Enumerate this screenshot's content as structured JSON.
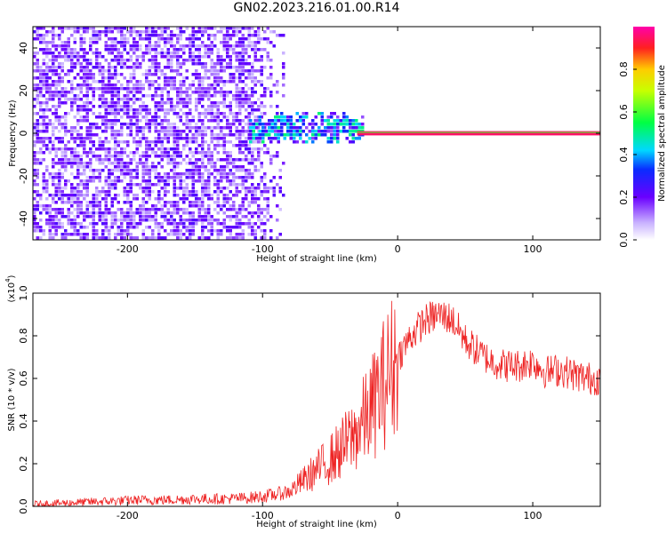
{
  "title": "GN02.2023.216.01.00.R14",
  "colors": {
    "spectrogram_low": "#5500ee",
    "snr_line": "#ee2222",
    "axis": "#000000",
    "background": "#ffffff"
  },
  "chart_data": [
    {
      "type": "heatmap",
      "xlabel": "Height of straight line (km)",
      "ylabel": "Frequency (Hz)",
      "xlim": [
        -270,
        150
      ],
      "ylim": [
        -50,
        50
      ],
      "xticks": [
        -200,
        -100,
        0,
        100
      ],
      "xtick_labels": [
        "-200",
        "-100",
        "0",
        "100"
      ],
      "yticks": [
        -40,
        -20,
        0,
        20,
        40
      ],
      "ytick_labels": [
        "-40",
        "-20",
        "0",
        "20",
        "40"
      ],
      "colorbar": {
        "label": "Normalized spectral amplitude",
        "range": [
          0.0,
          1.0
        ],
        "ticks": [
          0.0,
          0.2,
          0.4,
          0.6,
          0.8
        ],
        "tick_labels": [
          "0.0",
          "0.2",
          "0.4",
          "0.6",
          "0.8"
        ],
        "colormap": "rainbow-white"
      },
      "regions": [
        {
          "x_range": [
            -270,
            -85
          ],
          "freq_range": [
            -50,
            50
          ],
          "amplitude": 0.2,
          "pattern": "broadband noise"
        },
        {
          "x_range": [
            -110,
            -25
          ],
          "freq_range": [
            -5,
            10
          ],
          "amplitude": 0.35,
          "pattern": "narrowing cluster"
        },
        {
          "x_range": [
            -30,
            150
          ],
          "freq_range": [
            -1,
            1
          ],
          "amplitude": 0.95,
          "pattern": "narrow line at 0 Hz"
        }
      ]
    },
    {
      "type": "line",
      "xlabel": "Height of straight line (km)",
      "ylabel": "SNR (10 * v/v)",
      "yscale_label": "(x10",
      "yscale_exp": "4",
      "yscale_close": ")",
      "xlim": [
        -270,
        150
      ],
      "ylim": [
        0.0,
        1.0
      ],
      "xticks": [
        -200,
        -100,
        0,
        100
      ],
      "xtick_labels": [
        "-200",
        "-100",
        "0",
        "100"
      ],
      "yticks": [
        0.0,
        0.2,
        0.4,
        0.6,
        0.8,
        1.0
      ],
      "ytick_labels": [
        "0.0",
        "0.2",
        "0.4",
        "0.6",
        "0.8",
        "1.0"
      ],
      "series": [
        {
          "x": [
            -270,
            -250,
            -230,
            -210,
            -190,
            -170,
            -150,
            -130,
            -110,
            -95,
            -80,
            -70,
            -60,
            -50,
            -40,
            -30,
            -20,
            -10,
            0,
            10,
            20,
            30,
            40,
            50,
            60,
            70,
            80,
            90,
            100,
            110,
            120,
            130,
            140,
            150
          ],
          "y": [
            0.01,
            0.015,
            0.02,
            0.025,
            0.03,
            0.03,
            0.035,
            0.035,
            0.04,
            0.05,
            0.07,
            0.12,
            0.17,
            0.22,
            0.28,
            0.35,
            0.45,
            0.58,
            0.7,
            0.8,
            0.87,
            0.9,
            0.88,
            0.78,
            0.72,
            0.68,
            0.66,
            0.66,
            0.68,
            0.63,
            0.64,
            0.62,
            0.6,
            0.6
          ]
        }
      ]
    }
  ]
}
